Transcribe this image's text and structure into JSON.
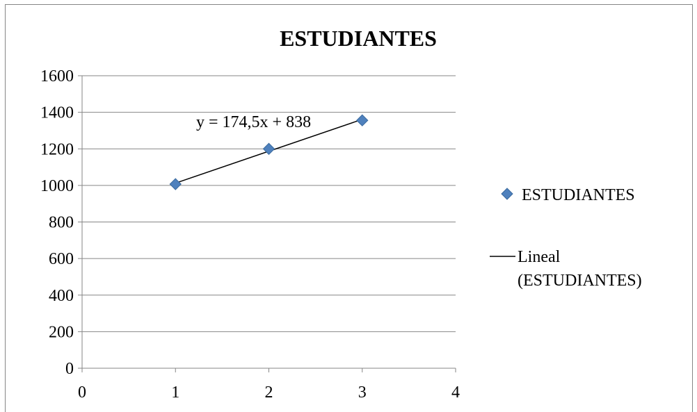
{
  "chart_data": {
    "type": "scatter",
    "title": "ESTUDIANTES",
    "xlabel": "",
    "ylabel": "",
    "xlim": [
      0,
      4
    ],
    "ylim": [
      0,
      1600
    ],
    "x_ticks": [
      0,
      1,
      2,
      3,
      4
    ],
    "y_ticks": [
      0,
      200,
      400,
      600,
      800,
      1000,
      1200,
      1400,
      1600
    ],
    "grid": "horizontal",
    "legend_position": "right",
    "series": [
      {
        "name": "ESTUDIANTES",
        "marker": "diamond",
        "color": "#4F81BD",
        "x": [
          1,
          2,
          3
        ],
        "y": [
          1007,
          1200,
          1356
        ]
      }
    ],
    "trendline": {
      "type": "linear",
      "legend_label_line1": "Lineal",
      "legend_label_line2": "(ESTUDIANTES)",
      "slope": 174.5,
      "intercept": 838,
      "x_range": [
        1,
        3
      ],
      "equation": "y = 174,5x + 838",
      "color": "#000000"
    }
  }
}
